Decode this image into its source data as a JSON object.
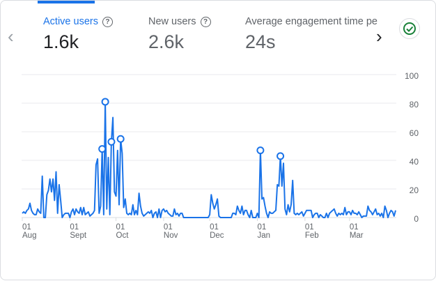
{
  "nav": {
    "prev_icon": "chevron-left-icon",
    "next_icon": "chevron-right-icon"
  },
  "tabs": [
    {
      "label": "Active users",
      "value": "1.6k",
      "active": true
    },
    {
      "label": "New users",
      "value": "2.6k",
      "active": false
    },
    {
      "label": "Average engagement time per",
      "value": "24s",
      "active": false
    }
  ],
  "status_icon": "check-circle-icon",
  "colors": {
    "accent": "#1a73e8",
    "check": "#188038",
    "grid": "#e8eaed",
    "text": "#5f6368"
  },
  "chart_data": {
    "type": "line",
    "series": [
      {
        "values_by_month": {
          "Aug": [
            3,
            4,
            3,
            5,
            6,
            10,
            5,
            3,
            2,
            2,
            6,
            4,
            3,
            29,
            0,
            0,
            16,
            19,
            27,
            18,
            27,
            12,
            32,
            3,
            23,
            12,
            0,
            2,
            3,
            3,
            3
          ],
          "Sept": [
            0,
            4,
            6,
            2,
            6,
            4,
            3,
            7,
            2,
            7,
            2,
            3,
            4,
            1,
            2,
            3,
            5,
            37,
            41,
            3,
            8,
            48,
            2,
            81,
            6,
            42,
            2,
            53,
            70,
            18
          ],
          "Oct": [
            15,
            47,
            9,
            55,
            45,
            7,
            13,
            3,
            2,
            3,
            2,
            9,
            2,
            5,
            2,
            17,
            8,
            3,
            1,
            2,
            3,
            4,
            3,
            5,
            0,
            3,
            4,
            0,
            6,
            0,
            5
          ],
          "Nov": [
            6,
            4,
            5,
            3,
            2,
            1,
            1,
            6,
            2,
            3,
            1,
            3,
            3,
            0,
            0,
            0,
            0,
            0,
            0,
            0,
            0,
            0,
            0,
            0,
            0,
            0,
            0,
            0,
            0,
            0
          ],
          "Dec": [
            2,
            16,
            10,
            6,
            9,
            13,
            1,
            0,
            0,
            0,
            0,
            0,
            0,
            0,
            0,
            3,
            3,
            2,
            8,
            5,
            3,
            8,
            2,
            5,
            5,
            2,
            0,
            5,
            0,
            0,
            0
          ],
          "Jan": [
            3,
            0,
            47,
            13,
            14,
            8,
            3,
            0,
            4,
            3,
            3,
            4,
            5,
            23,
            22,
            43,
            22,
            38,
            6,
            2,
            9,
            4,
            9,
            26,
            3,
            2,
            3,
            2,
            3,
            4,
            1
          ],
          "Feb": [
            3,
            5,
            5,
            5,
            5,
            0,
            2,
            3,
            3,
            0,
            2,
            1,
            0,
            0,
            3,
            0,
            3,
            4,
            5,
            6,
            3,
            1,
            3,
            2,
            3,
            2,
            7,
            2,
            4
          ],
          "Mar": [
            4,
            2,
            5,
            3,
            3,
            2,
            4,
            2,
            0,
            1,
            1,
            1,
            8,
            5,
            4,
            2,
            4,
            6,
            2,
            3,
            1,
            3,
            0,
            8,
            5,
            0,
            3,
            5,
            4,
            1,
            5
          ]
        },
        "markers": [
          [
            "Sept",
            22
          ],
          [
            "Sept",
            24
          ],
          [
            "Sept",
            28
          ],
          [
            "Oct",
            4
          ],
          [
            "Jan",
            3
          ],
          [
            "Jan",
            16
          ]
        ]
      }
    ],
    "x_ticks": [
      {
        "day": "01",
        "month": "Aug"
      },
      {
        "day": "01",
        "month": "Sept"
      },
      {
        "day": "01",
        "month": "Oct"
      },
      {
        "day": "01",
        "month": "Nov"
      },
      {
        "day": "01",
        "month": "Dec"
      },
      {
        "day": "01",
        "month": "Jan"
      },
      {
        "day": "01",
        "month": "Feb"
      },
      {
        "day": "01",
        "month": "Mar"
      }
    ],
    "y_ticks": [
      "0",
      "20",
      "40",
      "60",
      "80",
      "100"
    ],
    "ylim": [
      0,
      100
    ],
    "y_axis_position": "right",
    "grid": true
  }
}
